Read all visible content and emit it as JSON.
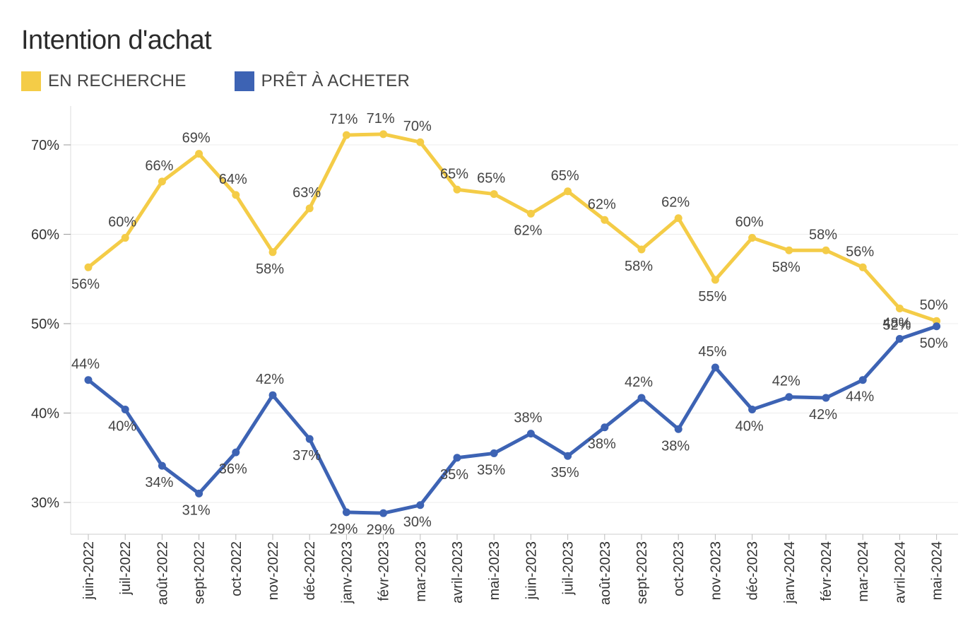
{
  "chart_data": {
    "type": "line",
    "title": "Intention d'achat",
    "categories": [
      "juin-2022",
      "juil-2022",
      "août-2022",
      "sept-2022",
      "oct-2022",
      "nov-2022",
      "déc-2022",
      "janv-2023",
      "févr-2023",
      "mar-2023",
      "avril-2023",
      "mai-2023",
      "juin-2023",
      "juil-2023",
      "août-2023",
      "sept-2023",
      "oct-2023",
      "nov-2023",
      "déc-2023",
      "janv-2024",
      "févr-2024",
      "mar-2024",
      "avril-2024",
      "mai-2024"
    ],
    "series": [
      {
        "name": "EN RECHERCHE",
        "color": "#F4CC47",
        "values": [
          56.3,
          59.6,
          65.9,
          69.0,
          64.4,
          58.0,
          62.9,
          71.1,
          71.2,
          70.3,
          65.0,
          64.5,
          62.3,
          64.8,
          61.6,
          58.3,
          61.8,
          54.9,
          59.6,
          58.2,
          58.2,
          56.3,
          51.7,
          50.3
        ],
        "labels": [
          "56%",
          "60%",
          "66%",
          "69%",
          "64%",
          "58%",
          "63%",
          "71%",
          "71%",
          "70%",
          "65%",
          "65%",
          "62%",
          "65%",
          "62%",
          "58%",
          "62%",
          "55%",
          "60%",
          "58%",
          "58%",
          "56%",
          "52%",
          "50%"
        ]
      },
      {
        "name": "PRÊT À ACHETER",
        "color": "#3D63B4",
        "values": [
          43.7,
          40.4,
          34.1,
          31.0,
          35.6,
          42.0,
          37.1,
          28.9,
          28.8,
          29.7,
          35.0,
          35.5,
          37.7,
          35.2,
          38.4,
          41.7,
          38.2,
          45.1,
          40.4,
          41.8,
          41.7,
          43.7,
          48.3,
          49.7
        ],
        "labels": [
          "44%",
          "40%",
          "34%",
          "31%",
          "36%",
          "42%",
          "37%",
          "29%",
          "29%",
          "30%",
          "35%",
          "35%",
          "38%",
          "35%",
          "38%",
          "42%",
          "38%",
          "45%",
          "40%",
          "42%",
          "42%",
          "44%",
          "48%",
          "50%"
        ]
      }
    ],
    "ylim": [
      25,
      73
    ],
    "yticks": [
      30,
      40,
      50,
      60,
      70
    ],
    "ytick_labels": [
      "30%",
      "40%",
      "50%",
      "60%",
      "70%"
    ],
    "xlabel": "",
    "ylabel": "",
    "grid": true,
    "legend": "top-left"
  }
}
